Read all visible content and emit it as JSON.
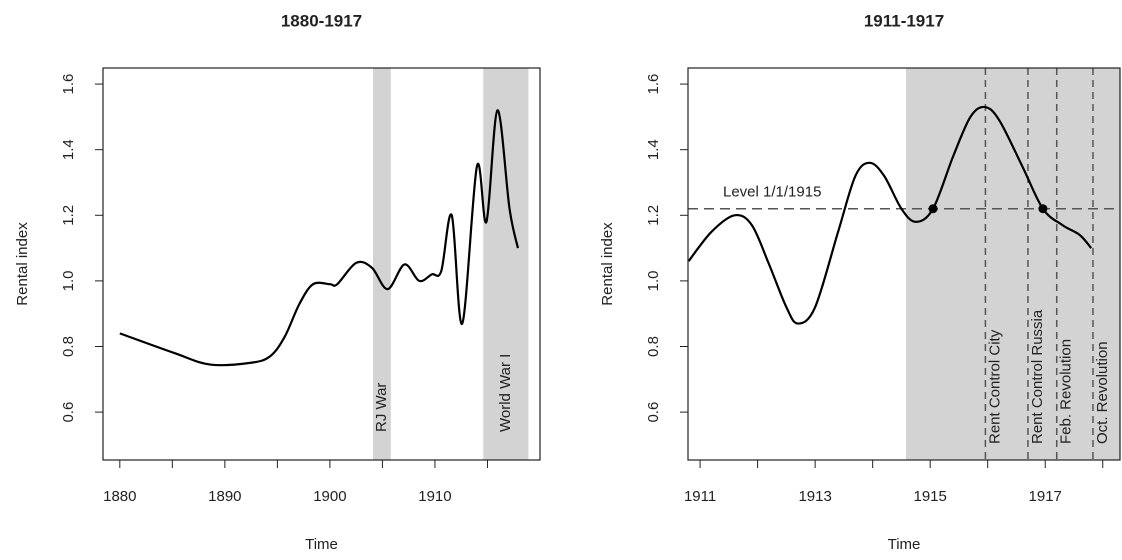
{
  "chart_data": [
    {
      "type": "line",
      "title": "1880-1917",
      "xlabel": "Time",
      "ylabel": "Rental index",
      "xlim": [
        1878.4,
        1920
      ],
      "ylim": [
        0.454,
        1.649
      ],
      "xticks": [
        1880,
        1890,
        1900,
        1910
      ],
      "xticks_minor": [
        1885,
        1895,
        1905,
        1915
      ],
      "yticks": [
        0.6,
        0.8,
        {
          "value": 1,
          "label": "1.0"
        },
        1.2,
        1.4,
        1.6
      ],
      "shaded": [
        {
          "start": 1904.1,
          "end": 1905.8,
          "label": "RJ War"
        },
        {
          "start": 1914.6,
          "end": 1918.9,
          "label": "World War I"
        }
      ],
      "x": [
        1880,
        1885.2,
        1888.6,
        1892.4,
        1894.3,
        1895.7,
        1897.1,
        1898.4,
        1900,
        1900.7,
        1902.5,
        1904,
        1905.5,
        1907.1,
        1908.5,
        1909.7,
        1910.6,
        1911.6,
        1912.6,
        1914,
        1914.9,
        1915.95,
        1917.1,
        1917.9
      ],
      "series": [
        {
          "color": "#000000",
          "values": [
            0.84,
            0.78,
            0.745,
            0.75,
            0.77,
            0.83,
            0.93,
            0.99,
            0.99,
            0.99,
            1.055,
            1.04,
            0.975,
            1.05,
            1.0,
            1.02,
            1.03,
            1.2,
            0.87,
            1.35,
            1.18,
            1.52,
            1.22,
            1.1
          ]
        }
      ]
    },
    {
      "type": "line",
      "title": "1911-1917",
      "xlabel": "Time",
      "ylabel": "Rental index",
      "xlim": [
        1910.79,
        1918.3
      ],
      "ylim": [
        0.454,
        1.649
      ],
      "xticks": [
        1911,
        1913,
        1915,
        1917
      ],
      "xticks_minor": [
        1912,
        1914,
        1916,
        1918
      ],
      "yticks": [
        0.6,
        0.8,
        {
          "value": 1,
          "label": "1.0"
        },
        1.2,
        1.4,
        1.6
      ],
      "shaded": [
        {
          "start": 1914.58,
          "end": 1918.3
        }
      ],
      "hline": {
        "value": 1.22,
        "label": "Level 1/1/1915"
      },
      "points": {
        "x": [
          1915.05,
          1916.96
        ],
        "values": [
          1.22,
          1.22
        ]
      },
      "vlines": [
        {
          "x": 1915.96,
          "label": "Rent Control City"
        },
        {
          "x": 1916.7,
          "label": "Rent Control Russia"
        },
        {
          "x": 1917.2,
          "label": "Feb. Revolution"
        },
        {
          "x": 1917.83,
          "label": "Oct. Revolution"
        }
      ],
      "x": [
        1910.8,
        1911.2,
        1911.6,
        1911.9,
        1912.2,
        1912.5,
        1912.7,
        1913.0,
        1913.4,
        1913.7,
        1913.95,
        1914.2,
        1914.5,
        1914.75,
        1915.05,
        1915.4,
        1915.7,
        1915.95,
        1916.2,
        1916.6,
        1916.96,
        1917.3,
        1917.6,
        1917.8
      ],
      "series": [
        {
          "color": "#000000",
          "values": [
            1.06,
            1.15,
            1.2,
            1.17,
            1.05,
            0.92,
            0.87,
            0.92,
            1.15,
            1.32,
            1.36,
            1.32,
            1.22,
            1.18,
            1.22,
            1.38,
            1.5,
            1.53,
            1.49,
            1.35,
            1.22,
            1.17,
            1.14,
            1.1
          ]
        }
      ]
    }
  ]
}
